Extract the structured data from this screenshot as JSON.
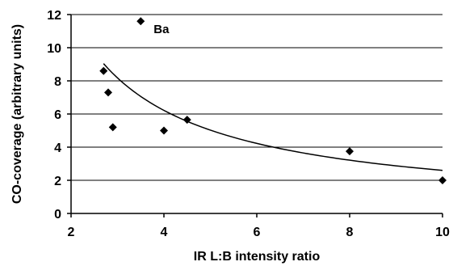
{
  "chart_data": {
    "type": "scatter",
    "xlabel": "IR L:B intensity ratio",
    "ylabel": "CO-coverage (arbitrary units)",
    "xlim": [
      2,
      10
    ],
    "ylim": [
      0,
      12
    ],
    "xticks": [
      2,
      4,
      6,
      8,
      10
    ],
    "yticks": [
      0,
      2,
      4,
      6,
      8,
      10,
      12
    ],
    "grid": "horizontal",
    "series": [
      {
        "points": [
          {
            "x": 2.7,
            "y": 8.6
          },
          {
            "x": 2.8,
            "y": 7.3
          },
          {
            "x": 2.9,
            "y": 5.2
          },
          {
            "x": 3.5,
            "y": 11.6
          },
          {
            "x": 4.0,
            "y": 5.0
          },
          {
            "x": 4.5,
            "y": 5.65
          },
          {
            "x": 8.0,
            "y": 3.75
          },
          {
            "x": 10.0,
            "y": 2.0
          }
        ]
      }
    ],
    "trendline": {
      "type": "power",
      "a": 23.27,
      "b": -0.952,
      "x_range": [
        2.7,
        10
      ]
    },
    "annotations": [
      {
        "text": "Ba",
        "x": 3.5,
        "y": 11.6
      }
    ],
    "colors": {
      "marker": "#000000",
      "line": "#000000",
      "grid": "#000000"
    }
  }
}
